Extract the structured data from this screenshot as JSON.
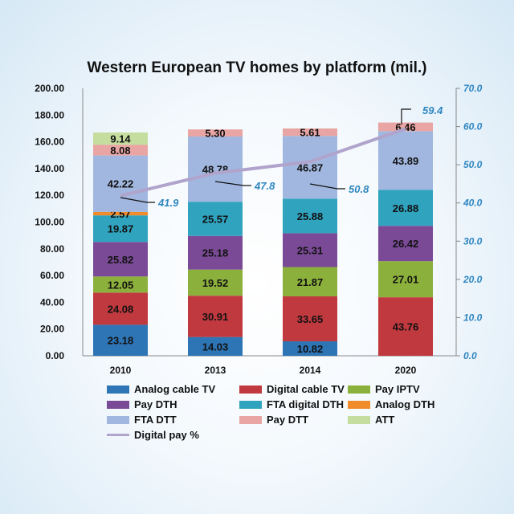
{
  "chart_data": {
    "type": "bar",
    "stacked": true,
    "title": "Western European TV homes by platform (mil.)",
    "categories": [
      "2010",
      "2013",
      "2014",
      "2020"
    ],
    "y_left": {
      "lim": [
        0,
        200
      ],
      "ticks": [
        "0.00",
        "20.00",
        "40.00",
        "60.00",
        "80.00",
        "100.00",
        "120.00",
        "140.00",
        "160.00",
        "180.00",
        "200.00"
      ]
    },
    "y_right": {
      "lim": [
        0,
        70
      ],
      "ticks": [
        "0.0",
        "10.0",
        "20.0",
        "30.0",
        "40.0",
        "50.0",
        "60.0",
        "70.0"
      ]
    },
    "grid": false,
    "legend_position": "bottom",
    "series": [
      {
        "name": "Analog cable TV",
        "color": "#2e75b6",
        "values": [
          23.18,
          14.03,
          10.82,
          0
        ]
      },
      {
        "name": "Digital cable TV",
        "color": "#c0393f",
        "values": [
          24.08,
          30.91,
          33.65,
          43.76
        ]
      },
      {
        "name": "Pay IPTV",
        "color": "#8cb03c",
        "values": [
          12.05,
          19.52,
          21.87,
          27.01
        ]
      },
      {
        "name": "Pay DTH",
        "color": "#7a4a96",
        "values": [
          25.82,
          25.18,
          25.31,
          26.42
        ]
      },
      {
        "name": "FTA digital DTH",
        "color": "#30a3bf",
        "values": [
          19.87,
          25.57,
          25.88,
          26.88
        ]
      },
      {
        "name": "Analog DTH",
        "color": "#f08c2a",
        "values": [
          2.57,
          0,
          0,
          0
        ]
      },
      {
        "name": "FTA DTT",
        "color": "#a1b7df",
        "values": [
          42.22,
          48.78,
          46.87,
          43.89
        ]
      },
      {
        "name": "Pay DTT",
        "color": "#e8a5a3",
        "values": [
          8.08,
          5.3,
          5.61,
          6.46
        ]
      },
      {
        "name": "ATT",
        "color": "#c5dea0",
        "values": [
          9.14,
          0,
          0,
          0
        ]
      }
    ],
    "line": {
      "name": "Digital pay %",
      "color": "#b0a4cc",
      "axis": "right",
      "values": [
        41.9,
        47.8,
        50.8,
        59.4
      ],
      "labels": [
        "41.9",
        "47.8",
        "50.8",
        "59.4"
      ]
    },
    "bar_labels": [
      [
        "23.18",
        "24.08",
        "12.05",
        "25.82",
        "19.87",
        "2.57",
        "42.22",
        "8.08",
        "9.14"
      ],
      [
        "14.03",
        "30.91",
        "19.52",
        "25.18",
        "25.57",
        "",
        "48.78",
        "5.30",
        ""
      ],
      [
        "10.82",
        "33.65",
        "21.87",
        "25.31",
        "25.88",
        "",
        "46.87",
        "5.61",
        ""
      ],
      [
        "",
        "43.76",
        "27.01",
        "26.42",
        "26.88",
        "",
        "43.89",
        "6.46",
        ""
      ]
    ]
  }
}
